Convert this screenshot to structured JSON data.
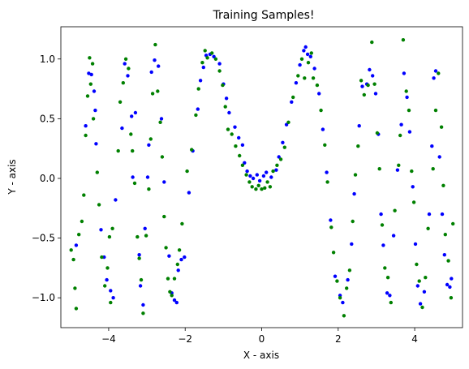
{
  "chart_data": {
    "type": "scatter",
    "title": "Training Samples!",
    "xlabel": "X - axis",
    "ylabel": "Y - axis",
    "xlim": [
      -5.25,
      5.25
    ],
    "ylim": [
      -1.25,
      1.27
    ],
    "xticks": [
      -4,
      -2,
      0,
      2,
      4
    ],
    "yticks": [
      -1.0,
      -0.5,
      0.0,
      0.5,
      1.0
    ],
    "xtick_labels": [
      "−4",
      "−2",
      "0",
      "2",
      "4"
    ],
    "ytick_labels": [
      "−1.0",
      "−0.5",
      "0.0",
      "0.5",
      "1.0"
    ],
    "grid": false,
    "colors": {
      "series_a": "#0000ff",
      "series_b": "#008000"
    },
    "series": [
      {
        "values": [
          [
            -4.85,
            -0.56
          ],
          [
            -4.6,
            0.44
          ],
          [
            -4.52,
            0.88
          ],
          [
            -4.45,
            0.87
          ],
          [
            -4.38,
            0.73
          ],
          [
            -4.35,
            0.57
          ],
          [
            -4.33,
            0.29
          ],
          [
            -4.2,
            -0.43
          ],
          [
            -4.12,
            -0.66
          ],
          [
            -4.05,
            -0.85
          ],
          [
            -3.95,
            -0.94
          ],
          [
            -3.88,
            -1.0
          ],
          [
            -3.82,
            -0.18
          ],
          [
            -3.65,
            0.42
          ],
          [
            -3.58,
            0.96
          ],
          [
            -3.5,
            0.86
          ],
          [
            -3.4,
            0.52
          ],
          [
            -3.37,
            0.01
          ],
          [
            -3.3,
            0.55
          ],
          [
            -3.2,
            -0.64
          ],
          [
            -3.17,
            -0.9
          ],
          [
            -3.1,
            -1.06
          ],
          [
            -3.05,
            -0.42
          ],
          [
            -2.98,
            0.01
          ],
          [
            -2.95,
            0.28
          ],
          [
            -2.88,
            0.89
          ],
          [
            -2.8,
            0.99
          ],
          [
            -2.7,
            0.94
          ],
          [
            -2.62,
            0.5
          ],
          [
            -2.55,
            -0.03
          ],
          [
            -2.42,
            -0.65
          ],
          [
            -2.35,
            -0.96
          ],
          [
            -2.28,
            -1.02
          ],
          [
            -2.22,
            -1.04
          ],
          [
            -2.18,
            -0.77
          ],
          [
            -2.1,
            -0.68
          ],
          [
            -2.02,
            -0.66
          ],
          [
            -1.9,
            -0.12
          ],
          [
            -1.8,
            0.23
          ],
          [
            -1.67,
            0.58
          ],
          [
            -1.6,
            0.82
          ],
          [
            -1.52,
            0.93
          ],
          [
            -1.45,
            1.03
          ],
          [
            -1.35,
            1.04
          ],
          [
            -1.25,
            1.02
          ],
          [
            -1.1,
            0.96
          ],
          [
            -1.0,
            0.79
          ],
          [
            -0.92,
            0.67
          ],
          [
            -0.85,
            0.55
          ],
          [
            -0.7,
            0.43
          ],
          [
            -0.6,
            0.34
          ],
          [
            -0.5,
            0.28
          ],
          [
            -0.45,
            0.13
          ],
          [
            -0.38,
            0.06
          ],
          [
            -0.3,
            0.02
          ],
          [
            -0.22,
            0.0
          ],
          [
            -0.12,
            0.03
          ],
          [
            -0.05,
            -0.02
          ],
          [
            0.05,
            0.02
          ],
          [
            0.12,
            0.05
          ],
          [
            0.25,
            0.01
          ],
          [
            0.38,
            0.07
          ],
          [
            0.45,
            0.18
          ],
          [
            0.55,
            0.3
          ],
          [
            0.65,
            0.45
          ],
          [
            0.78,
            0.64
          ],
          [
            0.9,
            0.8
          ],
          [
            1.0,
            0.95
          ],
          [
            1.1,
            1.07
          ],
          [
            1.15,
            1.1
          ],
          [
            1.2,
            1.04
          ],
          [
            1.28,
            1.02
          ],
          [
            1.38,
            0.92
          ],
          [
            1.5,
            0.71
          ],
          [
            1.6,
            0.41
          ],
          [
            1.7,
            0.05
          ],
          [
            1.8,
            -0.35
          ],
          [
            1.92,
            -0.82
          ],
          [
            2.05,
            -0.98
          ],
          [
            2.12,
            -1.04
          ],
          [
            2.25,
            -0.85
          ],
          [
            2.35,
            -0.55
          ],
          [
            2.42,
            -0.13
          ],
          [
            2.55,
            0.44
          ],
          [
            2.63,
            0.77
          ],
          [
            2.75,
            0.79
          ],
          [
            2.82,
            0.91
          ],
          [
            2.9,
            0.86
          ],
          [
            2.98,
            0.71
          ],
          [
            3.05,
            0.37
          ],
          [
            3.12,
            -0.3
          ],
          [
            3.18,
            -0.56
          ],
          [
            3.28,
            -0.96
          ],
          [
            3.35,
            -0.98
          ],
          [
            3.45,
            -0.48
          ],
          [
            3.55,
            0.07
          ],
          [
            3.65,
            0.45
          ],
          [
            3.72,
            0.88
          ],
          [
            3.8,
            0.68
          ],
          [
            3.87,
            0.39
          ],
          [
            3.95,
            -0.07
          ],
          [
            4.02,
            -0.55
          ],
          [
            4.08,
            -0.9
          ],
          [
            4.15,
            -1.05
          ],
          [
            4.25,
            -0.95
          ],
          [
            4.38,
            -0.3
          ],
          [
            4.45,
            0.27
          ],
          [
            4.5,
            0.84
          ],
          [
            4.55,
            0.9
          ],
          [
            4.65,
            0.18
          ],
          [
            4.72,
            -0.3
          ],
          [
            4.78,
            -0.64
          ],
          [
            4.85,
            -0.89
          ],
          [
            4.92,
            -0.91
          ],
          [
            4.96,
            -0.84
          ]
        ]
      },
      {
        "values": [
          [
            -4.98,
            -0.6
          ],
          [
            -4.92,
            -0.68
          ],
          [
            -4.88,
            -0.92
          ],
          [
            -4.85,
            -1.09
          ],
          [
            -4.78,
            -0.47
          ],
          [
            -4.7,
            -0.36
          ],
          [
            -4.65,
            -0.14
          ],
          [
            -4.6,
            0.36
          ],
          [
            -4.55,
            0.69
          ],
          [
            -4.5,
            1.01
          ],
          [
            -4.47,
            0.79
          ],
          [
            -4.42,
            0.96
          ],
          [
            -4.4,
            0.5
          ],
          [
            -4.3,
            0.05
          ],
          [
            -4.25,
            -0.22
          ],
          [
            -4.18,
            -0.66
          ],
          [
            -4.1,
            -0.9
          ],
          [
            -4.03,
            -0.75
          ],
          [
            -3.98,
            -0.49
          ],
          [
            -3.95,
            -1.04
          ],
          [
            -3.9,
            -0.42
          ],
          [
            -3.75,
            0.23
          ],
          [
            -3.7,
            0.64
          ],
          [
            -3.62,
            0.8
          ],
          [
            -3.55,
            1.0
          ],
          [
            -3.48,
            0.92
          ],
          [
            -3.42,
            0.37
          ],
          [
            -3.38,
            0.23
          ],
          [
            -3.32,
            -0.04
          ],
          [
            -3.25,
            -0.49
          ],
          [
            -3.2,
            -0.67
          ],
          [
            -3.15,
            -0.85
          ],
          [
            -3.1,
            -1.13
          ],
          [
            -3.02,
            -0.48
          ],
          [
            -2.95,
            -0.09
          ],
          [
            -2.9,
            0.33
          ],
          [
            -2.85,
            0.71
          ],
          [
            -2.78,
            1.12
          ],
          [
            -2.72,
            0.73
          ],
          [
            -2.65,
            0.47
          ],
          [
            -2.6,
            0.18
          ],
          [
            -2.55,
            -0.32
          ],
          [
            -2.5,
            -0.58
          ],
          [
            -2.45,
            -0.84
          ],
          [
            -2.4,
            -0.95
          ],
          [
            -2.35,
            -0.98
          ],
          [
            -2.28,
            -0.84
          ],
          [
            -2.2,
            -0.72
          ],
          [
            -2.15,
            -0.6
          ],
          [
            -2.08,
            -0.38
          ],
          [
            -1.95,
            0.06
          ],
          [
            -1.83,
            0.24
          ],
          [
            -1.72,
            0.53
          ],
          [
            -1.65,
            0.75
          ],
          [
            -1.55,
            0.97
          ],
          [
            -1.48,
            1.07
          ],
          [
            -1.42,
            1.01
          ],
          [
            -1.3,
            1.05
          ],
          [
            -1.2,
            1.0
          ],
          [
            -1.1,
            0.9
          ],
          [
            -1.02,
            0.78
          ],
          [
            -0.95,
            0.6
          ],
          [
            -0.88,
            0.41
          ],
          [
            -0.78,
            0.37
          ],
          [
            -0.68,
            0.27
          ],
          [
            -0.58,
            0.19
          ],
          [
            -0.5,
            0.11
          ],
          [
            -0.4,
            0.03
          ],
          [
            -0.32,
            -0.03
          ],
          [
            -0.25,
            -0.07
          ],
          [
            -0.15,
            -0.09
          ],
          [
            -0.08,
            -0.06
          ],
          [
            0.0,
            -0.09
          ],
          [
            0.08,
            -0.08
          ],
          [
            0.15,
            -0.03
          ],
          [
            0.22,
            -0.07
          ],
          [
            0.3,
            0.06
          ],
          [
            0.4,
            0.11
          ],
          [
            0.5,
            0.16
          ],
          [
            0.6,
            0.26
          ],
          [
            0.7,
            0.47
          ],
          [
            0.82,
            0.68
          ],
          [
            0.95,
            0.86
          ],
          [
            1.05,
            1.0
          ],
          [
            1.12,
            0.84
          ],
          [
            1.22,
            0.97
          ],
          [
            1.3,
            1.05
          ],
          [
            1.35,
            0.84
          ],
          [
            1.45,
            0.78
          ],
          [
            1.55,
            0.57
          ],
          [
            1.65,
            0.28
          ],
          [
            1.72,
            -0.03
          ],
          [
            1.82,
            -0.41
          ],
          [
            1.88,
            -0.62
          ],
          [
            1.97,
            -0.86
          ],
          [
            2.05,
            -1.0
          ],
          [
            2.15,
            -1.15
          ],
          [
            2.22,
            -0.92
          ],
          [
            2.3,
            -0.77
          ],
          [
            2.38,
            -0.36
          ],
          [
            2.45,
            0.03
          ],
          [
            2.52,
            0.27
          ],
          [
            2.6,
            0.82
          ],
          [
            2.68,
            0.7
          ],
          [
            2.78,
            0.78
          ],
          [
            2.88,
            1.14
          ],
          [
            2.95,
            0.79
          ],
          [
            3.02,
            0.38
          ],
          [
            3.08,
            0.08
          ],
          [
            3.15,
            -0.39
          ],
          [
            3.22,
            -0.75
          ],
          [
            3.3,
            -0.83
          ],
          [
            3.38,
            -1.04
          ],
          [
            3.48,
            -0.27
          ],
          [
            3.58,
            0.11
          ],
          [
            3.62,
            0.36
          ],
          [
            3.7,
            1.16
          ],
          [
            3.78,
            0.73
          ],
          [
            3.85,
            0.57
          ],
          [
            3.92,
            0.06
          ],
          [
            3.98,
            -0.2
          ],
          [
            4.05,
            -0.72
          ],
          [
            4.12,
            -0.86
          ],
          [
            4.2,
            -1.08
          ],
          [
            4.28,
            -0.83
          ],
          [
            4.35,
            -0.42
          ],
          [
            4.48,
            0.08
          ],
          [
            4.55,
            0.57
          ],
          [
            4.62,
            0.88
          ],
          [
            4.7,
            0.43
          ],
          [
            4.75,
            -0.06
          ],
          [
            4.8,
            -0.47
          ],
          [
            4.88,
            -0.69
          ],
          [
            4.95,
            -1.0
          ],
          [
            5.0,
            -0.38
          ]
        ]
      }
    ]
  }
}
